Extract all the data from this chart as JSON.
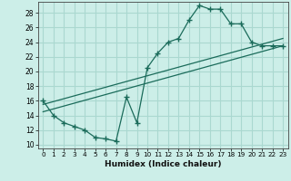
{
  "title": "",
  "xlabel": "Humidex (Indice chaleur)",
  "bg_color": "#cceee8",
  "grid_color": "#aad8d0",
  "line_color": "#1a6b5a",
  "xlim": [
    -0.5,
    23.5
  ],
  "ylim": [
    9.5,
    29.5
  ],
  "xticks": [
    0,
    1,
    2,
    3,
    4,
    5,
    6,
    7,
    8,
    9,
    10,
    11,
    12,
    13,
    14,
    15,
    16,
    17,
    18,
    19,
    20,
    21,
    22,
    23
  ],
  "yticks": [
    10,
    12,
    14,
    16,
    18,
    20,
    22,
    24,
    26,
    28
  ],
  "line1_x": [
    0,
    1,
    2,
    3,
    4,
    5,
    6,
    7,
    8,
    9,
    10,
    11,
    12,
    13,
    14,
    15,
    16,
    17,
    18,
    19,
    20,
    21,
    22,
    23
  ],
  "line1_y": [
    16,
    14,
    13,
    12.5,
    12,
    11,
    10.8,
    10.5,
    16.5,
    13,
    20.5,
    22.5,
    24,
    24.5,
    27,
    29,
    28.5,
    28.5,
    26.5,
    26.5,
    24,
    23.5,
    23.5,
    23.5
  ],
  "line2_x": [
    0,
    23
  ],
  "line2_y": [
    14.5,
    23.5
  ],
  "line3_x": [
    0,
    23
  ],
  "line3_y": [
    15.5,
    24.5
  ]
}
